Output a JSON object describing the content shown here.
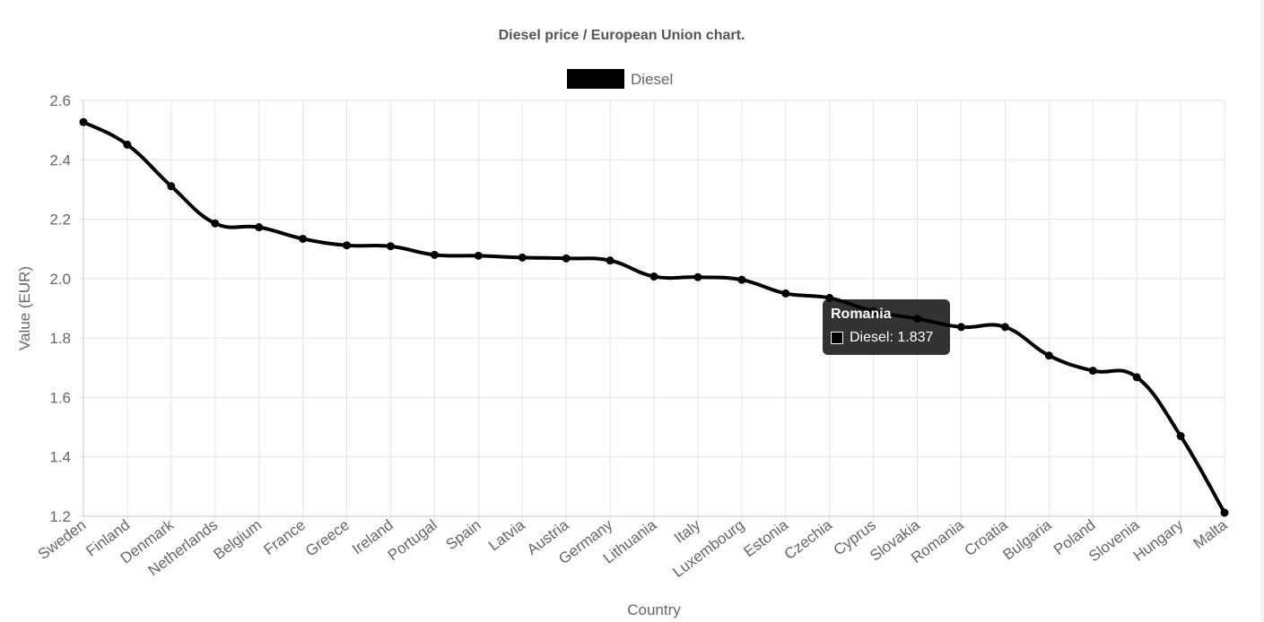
{
  "chart_data": {
    "type": "line",
    "title": "Diesel price / European Union chart.",
    "xlabel": "Country",
    "ylabel": "Value (EUR)",
    "ylim": [
      1.2,
      2.6
    ],
    "yticks": [
      "2.6",
      "2.4",
      "2.2",
      "2.0",
      "1.8",
      "1.6",
      "1.4",
      "1.2"
    ],
    "yticks_values": [
      2.6,
      2.4,
      2.2,
      2.0,
      1.8,
      1.6,
      1.4,
      1.2
    ],
    "grid": true,
    "legend": "top-center",
    "categories": [
      "Sweden",
      "Finland",
      "Denmark",
      "Netherlands",
      "Belgium",
      "France",
      "Greece",
      "Ireland",
      "Portugal",
      "Spain",
      "Latvia",
      "Austria",
      "Germany",
      "Lithuania",
      "Italy",
      "Luxembourg",
      "Estonia",
      "Czechia",
      "Cyprus",
      "Slovakia",
      "Romania",
      "Croatia",
      "Bulgaria",
      "Poland",
      "Slovenia",
      "Hungary",
      "Malta"
    ],
    "series": [
      {
        "name": "Diesel",
        "color": "#000000",
        "values": [
          2.527,
          2.451,
          2.311,
          2.186,
          2.173,
          2.134,
          2.112,
          2.109,
          2.08,
          2.077,
          2.071,
          2.068,
          2.061,
          2.007,
          2.005,
          1.996,
          1.95,
          1.935,
          1.89,
          1.865,
          1.837,
          1.837,
          1.741,
          1.69,
          1.668,
          1.47,
          1.212
        ]
      }
    ]
  },
  "tooltip": {
    "title": "Romania",
    "label": "Diesel:",
    "value": "1.837"
  },
  "colors": {
    "line": "#000000",
    "grid": "#e5e5e5",
    "text": "#666666",
    "title": "#555555"
  }
}
